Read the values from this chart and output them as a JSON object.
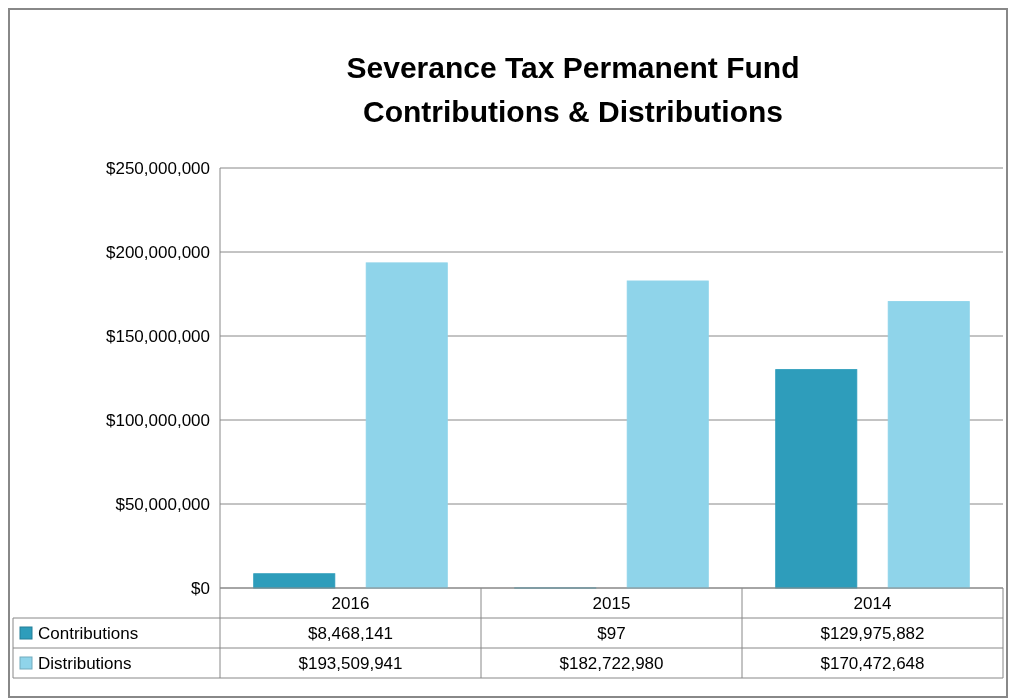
{
  "chart_data": {
    "type": "bar",
    "title": "Severance Tax Permanent Fund\nContributions & Distributions",
    "categories": [
      "2016",
      "2015",
      "2014"
    ],
    "series": [
      {
        "name": "Contributions",
        "color": "#2e9dbb",
        "values": [
          8468141,
          97,
          129975882
        ],
        "value_labels": [
          "$8,468,141",
          "$97",
          "$129,975,882"
        ]
      },
      {
        "name": "Distributions",
        "color": "#8fd4ea",
        "values": [
          193509941,
          182722980,
          170472648
        ],
        "value_labels": [
          "$193,509,941",
          "$182,722,980",
          "$170,472,648"
        ]
      }
    ],
    "ylim": [
      0,
      250000000
    ],
    "yticks": [
      {
        "value": 0,
        "label": "$0"
      },
      {
        "value": 50000000,
        "label": "$50,000,000"
      },
      {
        "value": 100000000,
        "label": "$100,000,000"
      },
      {
        "value": 150000000,
        "label": "$150,000,000"
      },
      {
        "value": 200000000,
        "label": "$200,000,000"
      },
      {
        "value": 250000000,
        "label": "$250,000,000"
      }
    ],
    "grid": "y",
    "legend": "bottom left"
  }
}
